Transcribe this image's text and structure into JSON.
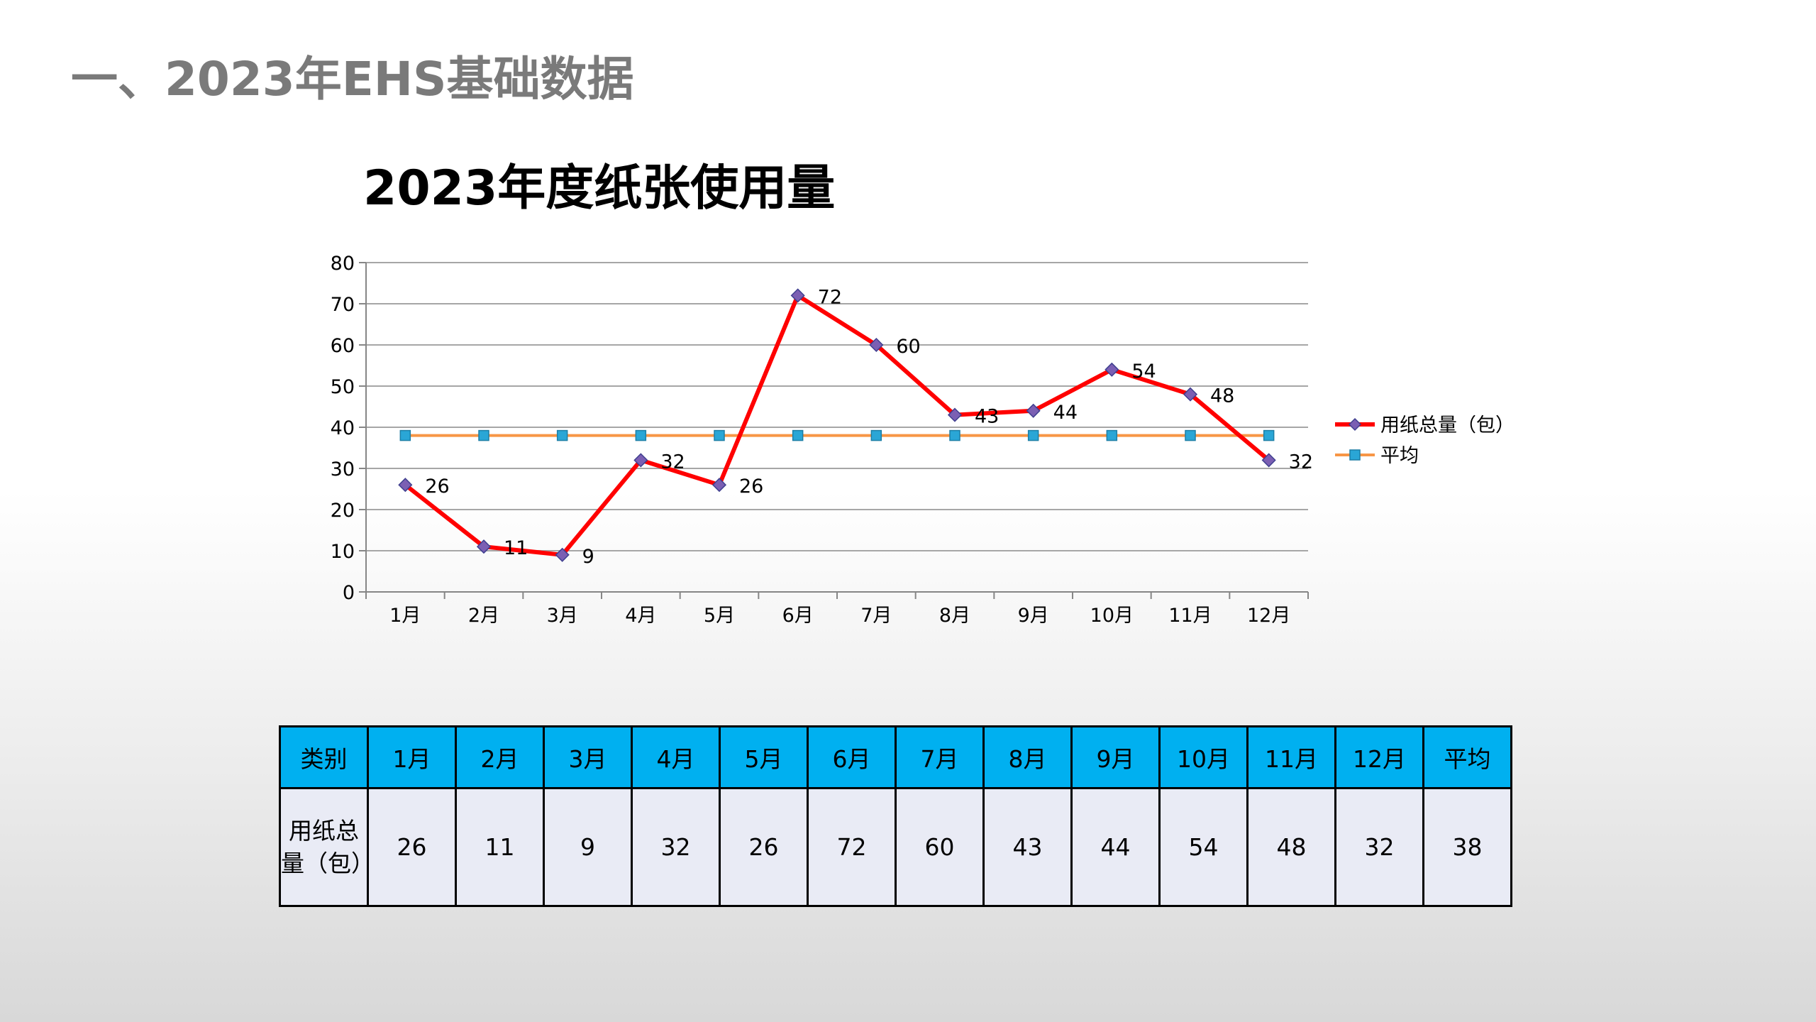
{
  "page": {
    "heading": "一、2023年EHS基础数据"
  },
  "chart_data": {
    "type": "line",
    "title": "2023年度纸张使用量",
    "categories": [
      "1月",
      "2月",
      "3月",
      "4月",
      "5月",
      "6月",
      "7月",
      "8月",
      "9月",
      "10月",
      "11月",
      "12月"
    ],
    "series": [
      {
        "name": "用纸总量（包）",
        "values": [
          26,
          11,
          9,
          32,
          26,
          72,
          60,
          43,
          44,
          54,
          48,
          32
        ],
        "color": "#ff0000",
        "marker": "diamond",
        "marker_color": "#7b5fb3",
        "data_labels": true
      },
      {
        "name": "平均",
        "values": [
          38,
          38,
          38,
          38,
          38,
          38,
          38,
          38,
          38,
          38,
          38,
          38
        ],
        "color": "#f79646",
        "marker": "square",
        "marker_color": "#2aa6d6",
        "data_labels": false
      }
    ],
    "yticks": [
      0,
      10,
      20,
      30,
      40,
      50,
      60,
      70,
      80
    ],
    "ylim": [
      0,
      80
    ],
    "grid": true,
    "legend": "right"
  },
  "table": {
    "header": [
      "类别",
      "1月",
      "2月",
      "3月",
      "4月",
      "5月",
      "6月",
      "7月",
      "8月",
      "9月",
      "10月",
      "11月",
      "12月",
      "平均"
    ],
    "row_label": [
      "用纸总",
      "量（包）"
    ],
    "row_values": [
      "26",
      "11",
      "9",
      "32",
      "26",
      "72",
      "60",
      "43",
      "44",
      "54",
      "48",
      "32",
      "38"
    ]
  }
}
